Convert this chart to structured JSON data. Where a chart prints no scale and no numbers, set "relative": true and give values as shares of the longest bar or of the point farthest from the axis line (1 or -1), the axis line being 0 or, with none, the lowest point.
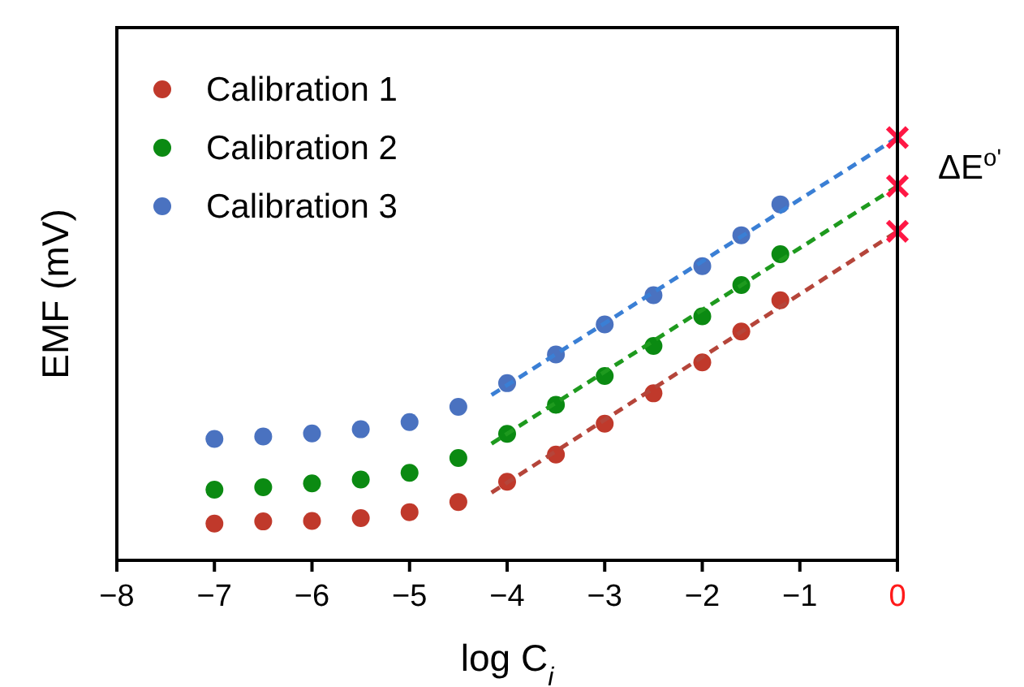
{
  "chart_data": {
    "type": "scatter",
    "relative": true,
    "xlabel": "log C$_{i}$",
    "ylabel": "EMF (mV)",
    "xlim": [
      -8,
      0
    ],
    "xticks": [
      -8,
      -7,
      -6,
      -5,
      -4,
      -3,
      -2,
      -1,
      0
    ],
    "legend": "top left",
    "marker": "circle",
    "grid": false,
    "annotations": [
      "ΔE$^{o'}$"
    ],
    "series": [
      {
        "name": "Calibration 1",
        "color": "#c0392b",
        "x": [
          -7,
          -6.5,
          -6,
          -5.5,
          -5,
          -4.5,
          -4,
          -3.5,
          -3,
          -2.5,
          -2,
          -1.6,
          -1.2
        ],
        "values": [
          0.087,
          0.092,
          0.093,
          0.1,
          0.114,
          0.138,
          0.186,
          0.25,
          0.323,
          0.395,
          0.468,
          0.541,
          0.615
        ]
      },
      {
        "name": "Calibration 2",
        "color": "#0b8a12",
        "x": [
          -7,
          -6.5,
          -6,
          -5.5,
          -5,
          -4.5,
          -4,
          -3.5,
          -3,
          -2.5,
          -2,
          -1.6,
          -1.2
        ],
        "values": [
          0.167,
          0.173,
          0.182,
          0.191,
          0.207,
          0.242,
          0.299,
          0.368,
          0.436,
          0.507,
          0.577,
          0.651,
          0.724
        ]
      },
      {
        "name": "Calibration 3",
        "color": "#4a72c0",
        "x": [
          -7,
          -6.5,
          -6,
          -5.5,
          -5,
          -4.5,
          -4,
          -3.5,
          -3,
          -2.5,
          -2,
          -1.6,
          -1.2
        ],
        "values": [
          0.287,
          0.293,
          0.3,
          0.31,
          0.327,
          0.363,
          0.419,
          0.487,
          0.558,
          0.627,
          0.696,
          0.769,
          0.842
        ]
      },
      {
        "type": "line",
        "marker": "none",
        "line_style": "dashed",
        "color": "#b5453a",
        "x": [
          -4.16,
          0
        ],
        "values": [
          0.16,
          0.778
        ]
      },
      {
        "type": "line",
        "marker": "none",
        "line_style": "dashed",
        "color": "#1e9a1e",
        "x": [
          -4.16,
          0
        ],
        "values": [
          0.276,
          0.885
        ]
      },
      {
        "type": "line",
        "marker": "none",
        "line_style": "dashed",
        "color": "#3a7fd5",
        "x": [
          -4.16,
          0
        ],
        "values": [
          0.391,
          1.0
        ]
      },
      {
        "type": "scatter",
        "marker": "cross",
        "color": "#ff1744",
        "x": [
          0,
          0,
          0
        ],
        "values": [
          0.778,
          0.885,
          1.0
        ]
      }
    ]
  }
}
